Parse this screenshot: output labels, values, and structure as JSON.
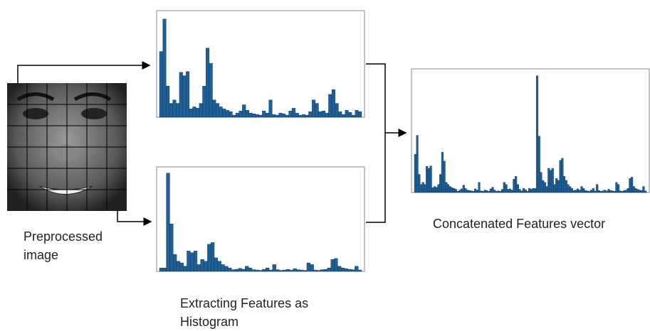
{
  "labels": {
    "input": "Preprocessed image",
    "extract": "Extracting Features as Histogram",
    "output": "Concatenated Features vector"
  },
  "histograms": [
    {
      "ylim": [
        0,
        1500
      ],
      "color": "#1f5f96",
      "values": [
        950,
        1420,
        450,
        200,
        250,
        200,
        650,
        600,
        660,
        120,
        150,
        130,
        200,
        450,
        1000,
        780,
        250,
        200,
        150,
        120,
        100,
        80,
        30,
        60,
        90,
        180,
        100,
        60,
        50,
        40,
        30,
        90,
        60,
        250,
        40,
        30,
        60,
        50,
        30,
        90,
        130,
        60,
        30,
        40,
        30,
        80,
        250,
        200,
        80,
        90,
        60,
        330,
        400,
        200,
        80,
        40,
        100,
        70,
        30,
        100,
        80
      ]
    },
    {
      "ylim": [
        0,
        3000
      ],
      "color": "#1f5f96",
      "values": [
        100,
        100,
        2900,
        1400,
        500,
        300,
        250,
        150,
        600,
        550,
        600,
        200,
        350,
        300,
        800,
        850,
        400,
        300,
        200,
        150,
        100,
        50,
        60,
        90,
        60,
        150,
        100,
        50,
        40,
        30,
        60,
        100,
        40,
        200,
        50,
        30,
        40,
        60,
        40,
        80,
        50,
        40,
        30,
        250,
        200,
        40,
        30,
        50,
        60,
        100,
        350,
        380,
        150,
        100,
        80,
        60,
        50,
        150,
        40
      ]
    }
  ],
  "concatenated": {
    "ylim": [
      0,
      3000
    ],
    "color": "#1f5f96"
  }
}
